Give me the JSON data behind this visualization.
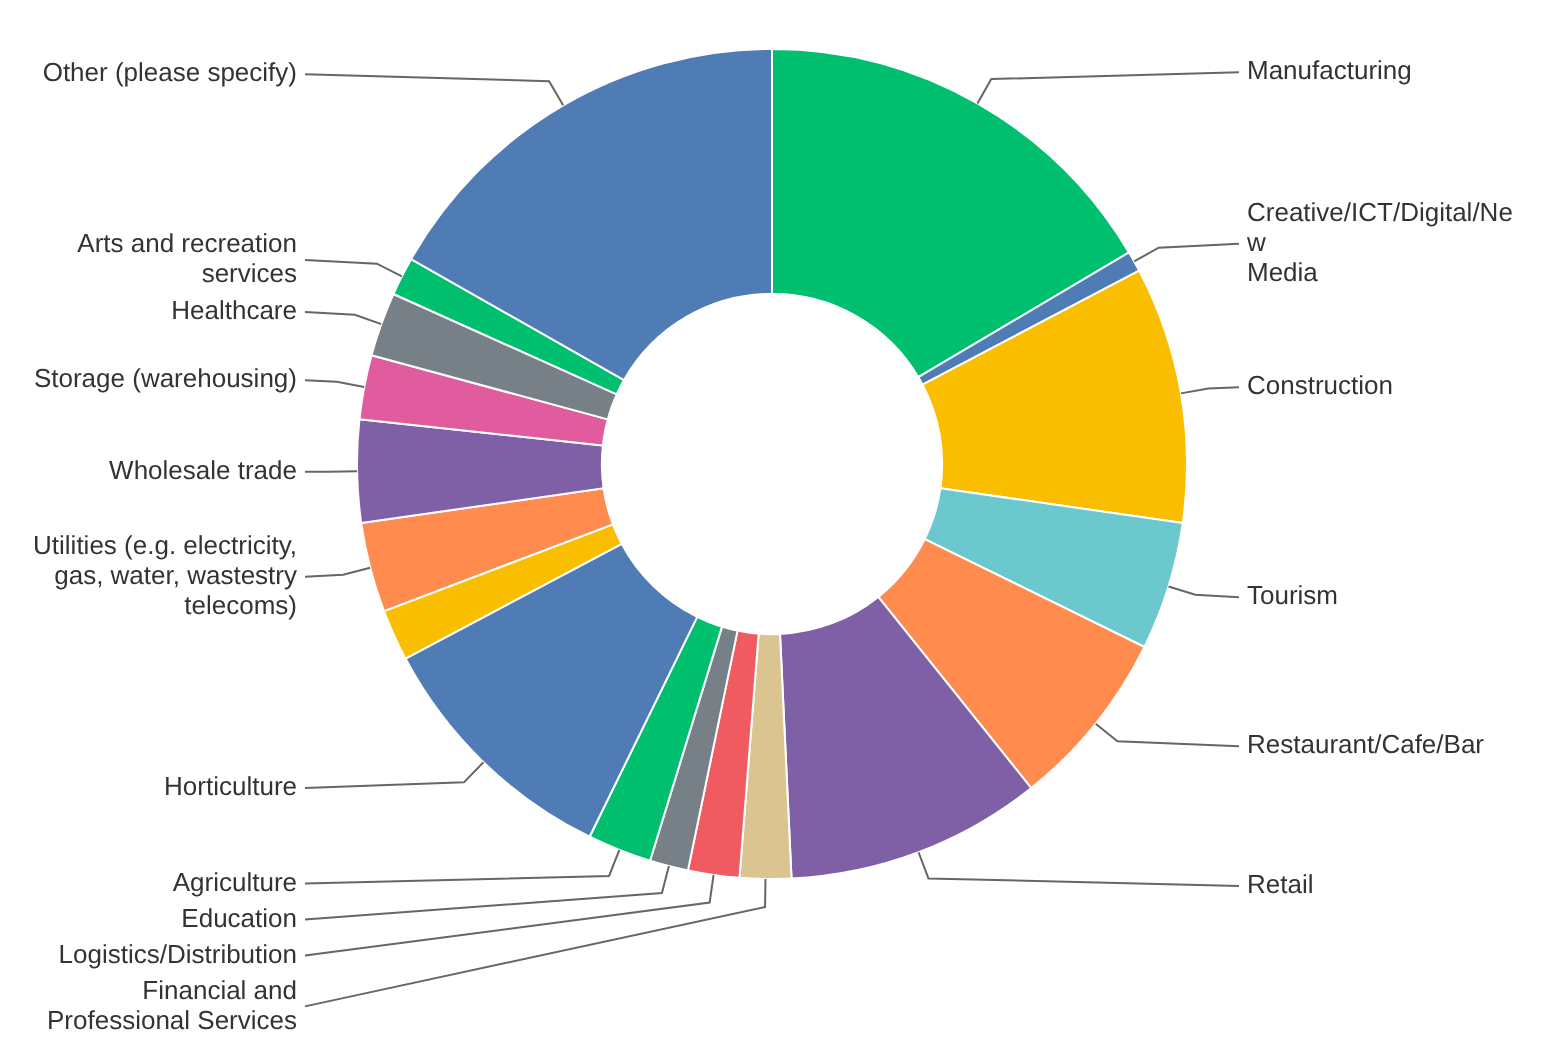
{
  "chart_data": {
    "type": "donut",
    "legend": false,
    "categories": [
      "Manufacturing",
      "Creative/ICT/Digital/New Media",
      "Construction",
      "Tourism",
      "Restaurant/Cafe/Bar",
      "Retail",
      "Financial and Professional Services",
      "Logistics/Distribution",
      "Education",
      "Agriculture",
      "Horticulture",
      null,
      "Utilities (e.g. electricity, gas, water, wastestry telecoms)",
      "Wholesale trade",
      "Storage (warehousing)",
      "Healthcare",
      "Arts and recreation services",
      "Other (please specify)"
    ],
    "values": [
      16.5,
      0.8,
      10,
      5,
      7,
      10,
      2,
      2,
      1.5,
      2.5,
      10,
      2,
      3.5,
      4,
      2.5,
      2.5,
      1.5,
      16.8
    ],
    "colors": [
      "#00bf6f",
      "#507cb6",
      "#f9be00",
      "#6bc8cd",
      "#ff8b4f",
      "#7f5fa6",
      "#dac590",
      "#f05b61",
      "#768086",
      "#00bf6f",
      "#507cb6",
      "#f9be00",
      "#ff8b4f",
      "#7f5fa6",
      "#e05c9e",
      "#768086",
      "#00bf6f",
      "#507cb6"
    ]
  }
}
